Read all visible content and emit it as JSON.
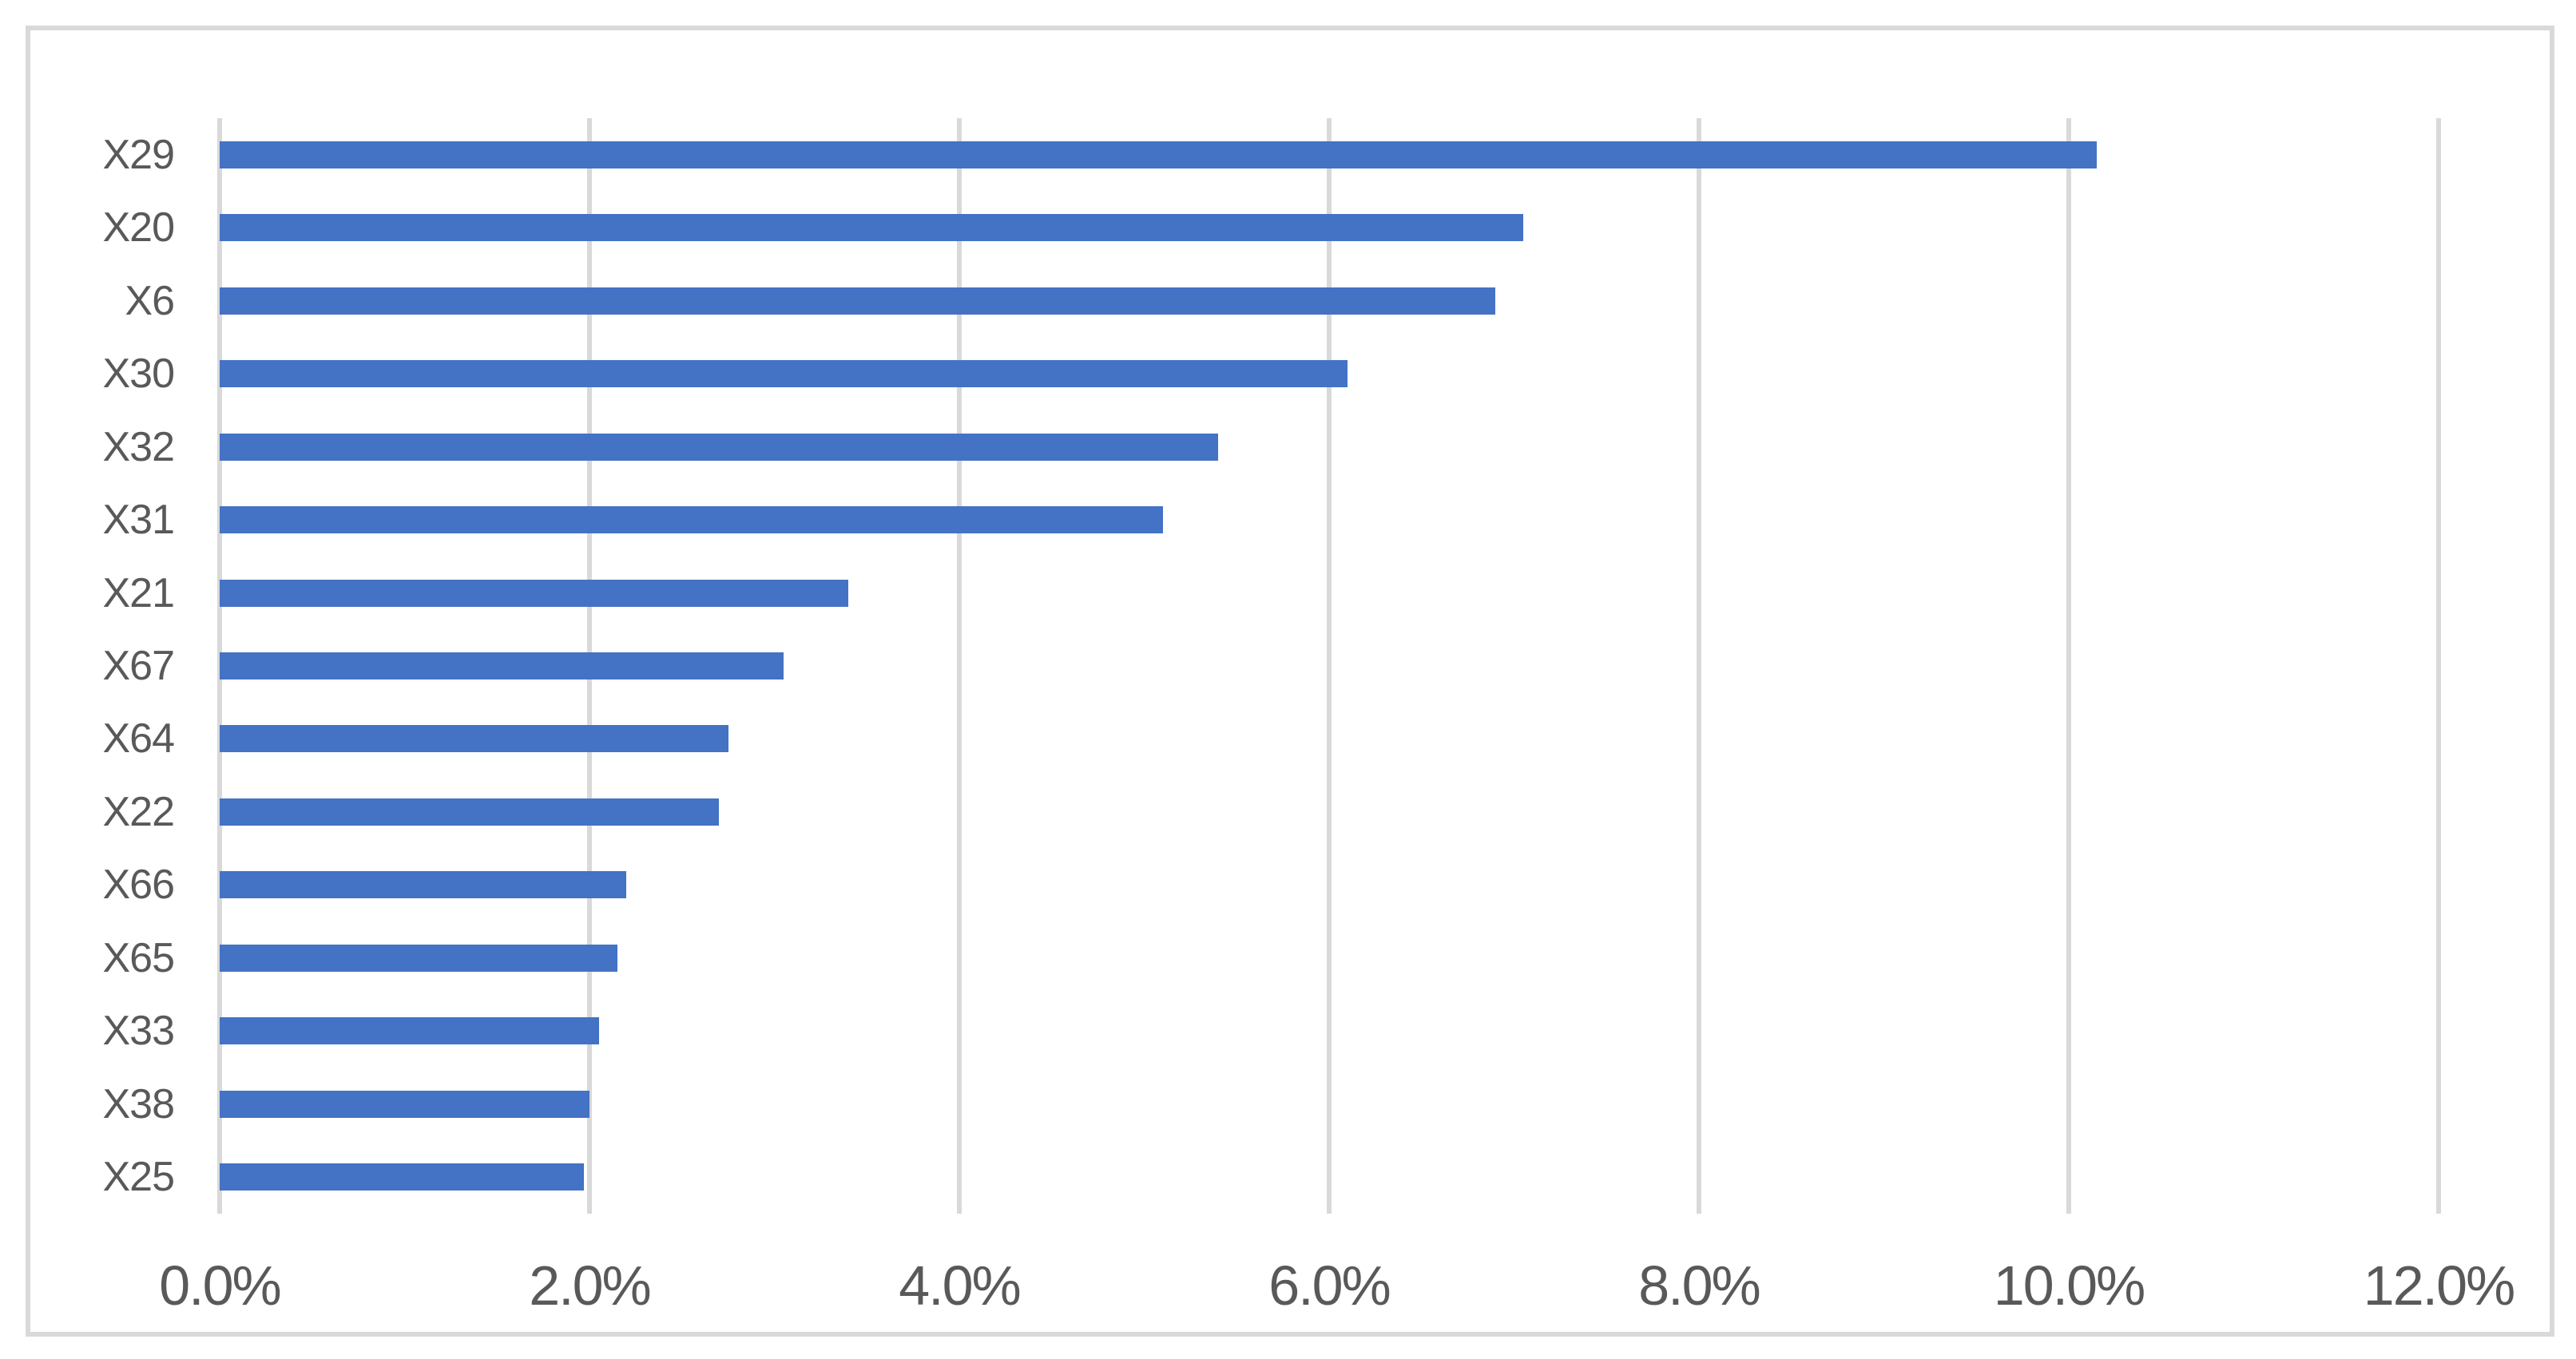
{
  "chart_data": {
    "type": "bar",
    "orientation": "horizontal",
    "title": "",
    "xlabel": "",
    "ylabel": "",
    "categories": [
      "X29",
      "X20",
      "X6",
      "X30",
      "X32",
      "X31",
      "X21",
      "X67",
      "X64",
      "X22",
      "X66",
      "X65",
      "X33",
      "X38",
      "X25"
    ],
    "values": [
      10.15,
      7.05,
      6.9,
      6.1,
      5.4,
      5.1,
      3.4,
      3.05,
      2.75,
      2.7,
      2.2,
      2.15,
      2.05,
      2.0,
      1.97
    ],
    "value_unit": "%",
    "xlim": [
      0,
      12
    ],
    "x_ticks": [
      "0.0%",
      "2.0%",
      "4.0%",
      "6.0%",
      "8.0%",
      "10.0%",
      "12.0%"
    ],
    "x_tick_values": [
      0,
      2,
      4,
      6,
      8,
      10,
      12
    ],
    "grid": true,
    "legend": false,
    "colors": {
      "bar": "#4472C4",
      "gridline": "#D9D9D9",
      "axis_line": "#D9D9D9",
      "text": "#595959",
      "frame_border": "#D9D9D9",
      "background": "#FFFFFF"
    }
  }
}
